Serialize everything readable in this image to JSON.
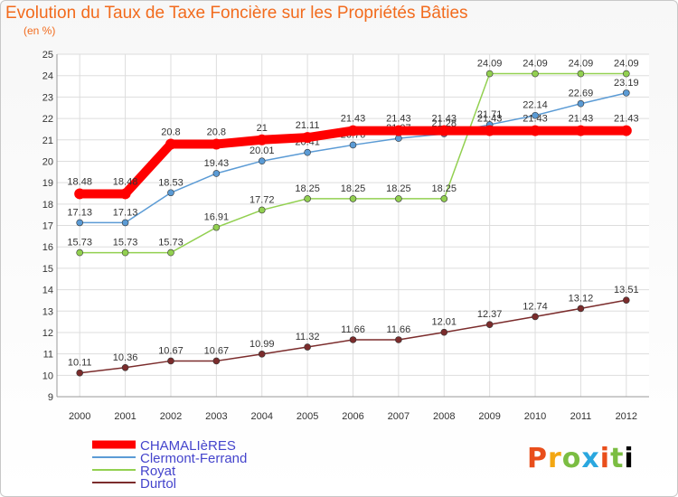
{
  "title": "Evolution du Taux de Taxe Foncière sur les Propriétés Bâties",
  "subtitle": "(en %)",
  "logo_text": "Proxiti",
  "chart_data": {
    "type": "line",
    "x": [
      "2000",
      "2001",
      "2002",
      "2003",
      "2004",
      "2005",
      "2006",
      "2007",
      "2008",
      "2009",
      "2010",
      "2011",
      "2012"
    ],
    "ylim": [
      9,
      25
    ],
    "yticks": [
      9,
      10,
      11,
      12,
      13,
      14,
      15,
      16,
      17,
      18,
      19,
      20,
      21,
      22,
      23,
      24,
      25
    ],
    "grid": true,
    "legend_position": "bottom-left",
    "series": [
      {
        "name": "CHAMALIèRES",
        "color": "#ff0000",
        "values": [
          18.48,
          18.48,
          20.8,
          20.8,
          21,
          21.11,
          21.43,
          21.43,
          21.43,
          21.43,
          21.43,
          21.43,
          21.43
        ],
        "labels": [
          "18.48",
          "18.48",
          "20.8",
          "20.8",
          "21",
          "21.11",
          "21.43",
          "21.43",
          "21.43",
          "21.43",
          "21.43",
          "21.43",
          "21.43"
        ]
      },
      {
        "name": "Clermont-Ferrand",
        "color": "#5b9bd5",
        "values": [
          17.13,
          17.13,
          18.53,
          19.43,
          20.01,
          20.41,
          20.76,
          21.07,
          21.28,
          21.71,
          22.14,
          22.69,
          23.19
        ],
        "labels": [
          "17.13",
          "17.13",
          "18.53",
          "19.43",
          "20.01",
          "20.41",
          "20.76",
          "21.07",
          "21.28",
          "21.71",
          "22.14",
          "22.69",
          "23.19"
        ]
      },
      {
        "name": "Royat",
        "color": "#92d050",
        "values": [
          15.73,
          15.73,
          15.73,
          16.91,
          17.72,
          18.25,
          18.25,
          18.25,
          18.25,
          24.09,
          24.09,
          24.09,
          24.09
        ],
        "labels": [
          "15.73",
          "15.73",
          "15.73",
          "16.91",
          "17.72",
          "18.25",
          "18.25",
          "18.25",
          "18.25",
          "24.09",
          "24.09",
          "24.09",
          "24.09"
        ]
      },
      {
        "name": "Durtol",
        "color": "#7b2c2c",
        "values": [
          10.11,
          10.36,
          10.67,
          10.67,
          10.99,
          11.32,
          11.66,
          11.66,
          12.01,
          12.37,
          12.74,
          13.12,
          13.51
        ],
        "labels": [
          "10.11",
          "10.36",
          "10.67",
          "10.67",
          "10.99",
          "11.32",
          "11.66",
          "11.66",
          "12.01",
          "12.37",
          "12.74",
          "13.12",
          "13.51"
        ]
      }
    ]
  }
}
